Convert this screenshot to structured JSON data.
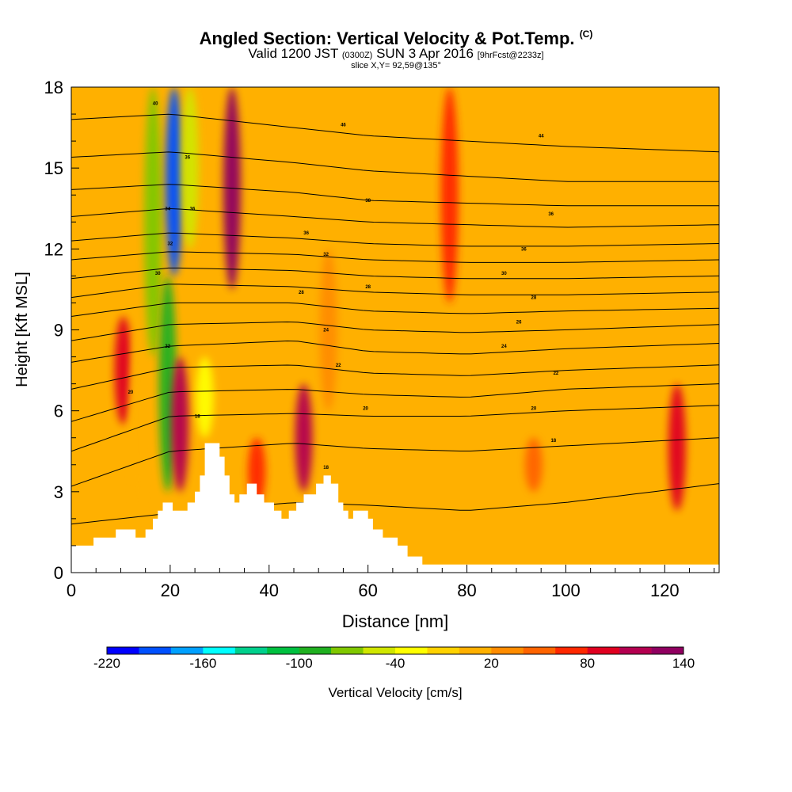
{
  "header": {
    "title": "Angled Section: Vertical Velocity & Pot.Temp.",
    "title_units": "(C)",
    "valid_prefix": "Valid 1200 JST",
    "valid_z": "(0300Z)",
    "valid_date": "SUN 3 Apr 2016",
    "fcst": "[9hrFcst@2233z]",
    "slice": "slice X,Y= 92,59@135°"
  },
  "chart_data": {
    "type": "heatmap",
    "xlabel": "Distance [nm]",
    "ylabel": "Height [Kft MSL]",
    "xlim": [
      0,
      131
    ],
    "ylim": [
      0,
      18
    ],
    "x_ticks": [
      "0",
      "20",
      "40",
      "60",
      "80",
      "100",
      "120"
    ],
    "x_tick_values": [
      0,
      20,
      40,
      60,
      80,
      100,
      120
    ],
    "y_ticks": [
      "0",
      "3",
      "6",
      "9",
      "12",
      "15",
      "18"
    ],
    "y_tick_values": [
      0,
      3,
      6,
      9,
      12,
      15,
      18
    ],
    "background_value": 15,
    "columns": [
      {
        "x": 10.5,
        "value": 80,
        "ylo": 5.5,
        "yhi": 9.5
      },
      {
        "x": 13.5,
        "value": 0,
        "ylo": 1.5,
        "yhi": 9
      },
      {
        "x": 16.5,
        "value": -80,
        "ylo": 8,
        "yhi": 18
      },
      {
        "x": 19.5,
        "value": -100,
        "ylo": 3,
        "yhi": 11
      },
      {
        "x": 20.8,
        "value": -200,
        "ylo": 11,
        "yhi": 18
      },
      {
        "x": 22,
        "value": 100,
        "ylo": 3,
        "yhi": 8
      },
      {
        "x": 24,
        "value": -60,
        "ylo": 12,
        "yhi": 18
      },
      {
        "x": 27,
        "value": -30,
        "ylo": 5,
        "yhi": 8
      },
      {
        "x": 32.5,
        "value": 120,
        "ylo": 10.5,
        "yhi": 18
      },
      {
        "x": 37.5,
        "value": 60,
        "ylo": 2.5,
        "yhi": 5
      },
      {
        "x": 47,
        "value": 110,
        "ylo": 3,
        "yhi": 7
      },
      {
        "x": 52,
        "value": 20,
        "ylo": 6,
        "yhi": 12
      },
      {
        "x": 76.5,
        "value": 60,
        "ylo": 10,
        "yhi": 18
      },
      {
        "x": 93.5,
        "value": 50,
        "ylo": 3,
        "yhi": 5
      },
      {
        "x": 122.5,
        "value": 90,
        "ylo": 2.3,
        "yhi": 7
      }
    ],
    "terrain": [
      [
        0,
        1
      ],
      [
        4.5,
        1
      ],
      [
        4.5,
        1.3
      ],
      [
        9,
        1.3
      ],
      [
        9,
        1.6
      ],
      [
        13,
        1.6
      ],
      [
        13,
        1.3
      ],
      [
        15,
        1.3
      ],
      [
        15,
        1.6
      ],
      [
        16.5,
        1.6
      ],
      [
        16.5,
        2
      ],
      [
        17.5,
        2
      ],
      [
        17.5,
        2.3
      ],
      [
        18.5,
        2.3
      ],
      [
        18.5,
        2.6
      ],
      [
        20.5,
        2.6
      ],
      [
        20.5,
        2.3
      ],
      [
        23.5,
        2.3
      ],
      [
        23.5,
        2.6
      ],
      [
        25,
        2.6
      ],
      [
        25,
        3
      ],
      [
        26,
        3
      ],
      [
        26,
        3.6
      ],
      [
        27,
        3.6
      ],
      [
        27,
        4.8
      ],
      [
        30,
        4.8
      ],
      [
        30,
        4.3
      ],
      [
        31,
        4.3
      ],
      [
        31,
        3.6
      ],
      [
        32,
        3.6
      ],
      [
        32,
        2.9
      ],
      [
        33,
        2.9
      ],
      [
        33,
        2.6
      ],
      [
        34,
        2.6
      ],
      [
        34,
        2.9
      ],
      [
        35.5,
        2.9
      ],
      [
        35.5,
        3.3
      ],
      [
        37.5,
        3.3
      ],
      [
        37.5,
        2.9
      ],
      [
        39,
        2.9
      ],
      [
        39,
        2.6
      ],
      [
        41,
        2.6
      ],
      [
        41,
        2.3
      ],
      [
        42.5,
        2.3
      ],
      [
        42.5,
        2
      ],
      [
        44,
        2
      ],
      [
        44,
        2.3
      ],
      [
        45.5,
        2.3
      ],
      [
        45.5,
        2.6
      ],
      [
        47,
        2.6
      ],
      [
        47,
        2.9
      ],
      [
        49.5,
        2.9
      ],
      [
        49.5,
        3.3
      ],
      [
        51,
        3.3
      ],
      [
        51,
        3.6
      ],
      [
        52.5,
        3.6
      ],
      [
        52.5,
        3.3
      ],
      [
        54,
        3.3
      ],
      [
        54,
        2.6
      ],
      [
        55,
        2.6
      ],
      [
        55,
        2.3
      ],
      [
        56,
        2.3
      ],
      [
        56,
        2
      ],
      [
        57,
        2
      ],
      [
        57,
        2.3
      ],
      [
        60,
        2.3
      ],
      [
        60,
        2
      ],
      [
        61,
        2
      ],
      [
        61,
        1.6
      ],
      [
        63,
        1.6
      ],
      [
        63,
        1.3
      ],
      [
        66,
        1.3
      ],
      [
        66,
        1
      ],
      [
        68,
        1
      ],
      [
        68,
        0.6
      ],
      [
        71,
        0.6
      ],
      [
        71,
        0.3
      ],
      [
        131,
        0.3
      ]
    ],
    "theta_levels": [
      {
        "label": "",
        "y0": 1.8,
        "y20": 2.2,
        "y45": 2.6,
        "y60": 2.5,
        "y80": 2.3,
        "y100": 2.6,
        "y131": 3.3
      },
      {
        "label": "16",
        "y0": 3.2,
        "y20": 4.5,
        "y45": 4.8,
        "y60": 4.6,
        "y80": 4.5,
        "y100": 4.7,
        "y131": 5.0
      },
      {
        "label": "18",
        "y0": 4.5,
        "y20": 5.8,
        "y45": 5.9,
        "y60": 5.8,
        "y80": 5.8,
        "y100": 6.0,
        "y131": 6.2
      },
      {
        "label": "20",
        "y0": 5.6,
        "y20": 6.7,
        "y45": 6.8,
        "y60": 6.6,
        "y80": 6.5,
        "y100": 6.8,
        "y131": 7.0
      },
      {
        "label": "22",
        "y0": 6.8,
        "y20": 7.6,
        "y45": 7.7,
        "y60": 7.4,
        "y80": 7.3,
        "y100": 7.5,
        "y131": 7.7
      },
      {
        "label": "24",
        "y0": 7.8,
        "y20": 8.4,
        "y45": 8.6,
        "y60": 8.2,
        "y80": 8.1,
        "y100": 8.3,
        "y131": 8.5
      },
      {
        "label": "26",
        "y0": 8.6,
        "y20": 9.2,
        "y45": 9.3,
        "y60": 9.0,
        "y80": 8.9,
        "y100": 9.0,
        "y131": 9.2
      },
      {
        "label": "28",
        "y0": 9.5,
        "y20": 10.0,
        "y45": 10.0,
        "y60": 9.7,
        "y80": 9.6,
        "y100": 9.7,
        "y131": 9.8
      },
      {
        "label": "30",
        "y0": 10.2,
        "y20": 10.7,
        "y45": 10.6,
        "y60": 10.4,
        "y80": 10.3,
        "y100": 10.3,
        "y131": 10.4
      },
      {
        "label": "32",
        "y0": 10.9,
        "y20": 11.3,
        "y45": 11.2,
        "y60": 11.0,
        "y80": 10.9,
        "y100": 10.9,
        "y131": 11.0
      },
      {
        "label": "34",
        "y0": 11.6,
        "y20": 11.9,
        "y45": 11.8,
        "y60": 11.6,
        "y80": 11.5,
        "y100": 11.5,
        "y131": 11.6
      },
      {
        "label": "36",
        "y0": 12.3,
        "y20": 12.6,
        "y45": 12.4,
        "y60": 12.2,
        "y80": 12.1,
        "y100": 12.1,
        "y131": 12.2
      },
      {
        "label": "38",
        "y0": 13.2,
        "y20": 13.5,
        "y45": 13.2,
        "y60": 13.0,
        "y80": 12.9,
        "y100": 12.8,
        "y131": 12.9
      },
      {
        "label": "40",
        "y0": 14.2,
        "y20": 14.4,
        "y45": 14.1,
        "y60": 13.8,
        "y80": 13.7,
        "y100": 13.6,
        "y131": 13.6
      },
      {
        "label": "42",
        "y0": 15.4,
        "y20": 15.6,
        "y45": 15.2,
        "y60": 14.9,
        "y80": 14.7,
        "y100": 14.5,
        "y131": 14.5
      },
      {
        "label": "44",
        "y0": 16.8,
        "y20": 17.0,
        "y45": 16.5,
        "y60": 16.2,
        "y80": 16.0,
        "y100": 15.8,
        "y131": 15.6
      }
    ],
    "contour_labels": [
      {
        "x": 17,
        "y": 17.4,
        "text": "40"
      },
      {
        "x": 23.5,
        "y": 15.4,
        "text": "36"
      },
      {
        "x": 19.5,
        "y": 13.5,
        "text": "34"
      },
      {
        "x": 24.5,
        "y": 13.5,
        "text": "36"
      },
      {
        "x": 20,
        "y": 12.2,
        "text": "32"
      },
      {
        "x": 17.5,
        "y": 11.1,
        "text": "30"
      },
      {
        "x": 19.5,
        "y": 8.4,
        "text": "22"
      },
      {
        "x": 12,
        "y": 6.7,
        "text": "20"
      },
      {
        "x": 25.5,
        "y": 5.8,
        "text": "18"
      },
      {
        "x": 55,
        "y": 16.6,
        "text": "46"
      },
      {
        "x": 95,
        "y": 16.2,
        "text": "44"
      },
      {
        "x": 60,
        "y": 13.8,
        "text": "38"
      },
      {
        "x": 97,
        "y": 13.3,
        "text": "36"
      },
      {
        "x": 47.5,
        "y": 12.6,
        "text": "36"
      },
      {
        "x": 51.5,
        "y": 11.8,
        "text": "32"
      },
      {
        "x": 91.5,
        "y": 12.0,
        "text": "36"
      },
      {
        "x": 87.5,
        "y": 11.1,
        "text": "30"
      },
      {
        "x": 46.5,
        "y": 10.4,
        "text": "28"
      },
      {
        "x": 60,
        "y": 10.6,
        "text": "28"
      },
      {
        "x": 93.5,
        "y": 10.2,
        "text": "28"
      },
      {
        "x": 90.5,
        "y": 9.3,
        "text": "26"
      },
      {
        "x": 51.5,
        "y": 9.0,
        "text": "24"
      },
      {
        "x": 87.5,
        "y": 8.4,
        "text": "24"
      },
      {
        "x": 54,
        "y": 7.7,
        "text": "22"
      },
      {
        "x": 98,
        "y": 7.4,
        "text": "22"
      },
      {
        "x": 59.5,
        "y": 6.1,
        "text": "20"
      },
      {
        "x": 93.5,
        "y": 6.1,
        "text": "20"
      },
      {
        "x": 97.5,
        "y": 4.9,
        "text": "18"
      },
      {
        "x": 51.5,
        "y": 3.9,
        "text": "18"
      }
    ],
    "colorbar": {
      "label": "Vertical Velocity [cm/s]",
      "min": -220,
      "max": 140,
      "step": 20,
      "tick_labels": [
        "-220",
        "-160",
        "-100",
        "-40",
        "20",
        "80",
        "140"
      ],
      "tick_values": [
        -220,
        -160,
        -100,
        -40,
        20,
        80,
        140
      ],
      "colors": [
        "#0000ff",
        "#0050ff",
        "#00a0ff",
        "#00ffff",
        "#00d08c",
        "#00c040",
        "#20b020",
        "#80c800",
        "#d0e600",
        "#ffff00",
        "#ffd200",
        "#ffb000",
        "#ff8c00",
        "#ff6400",
        "#ff2800",
        "#e00020",
        "#b40050",
        "#900060"
      ]
    }
  }
}
